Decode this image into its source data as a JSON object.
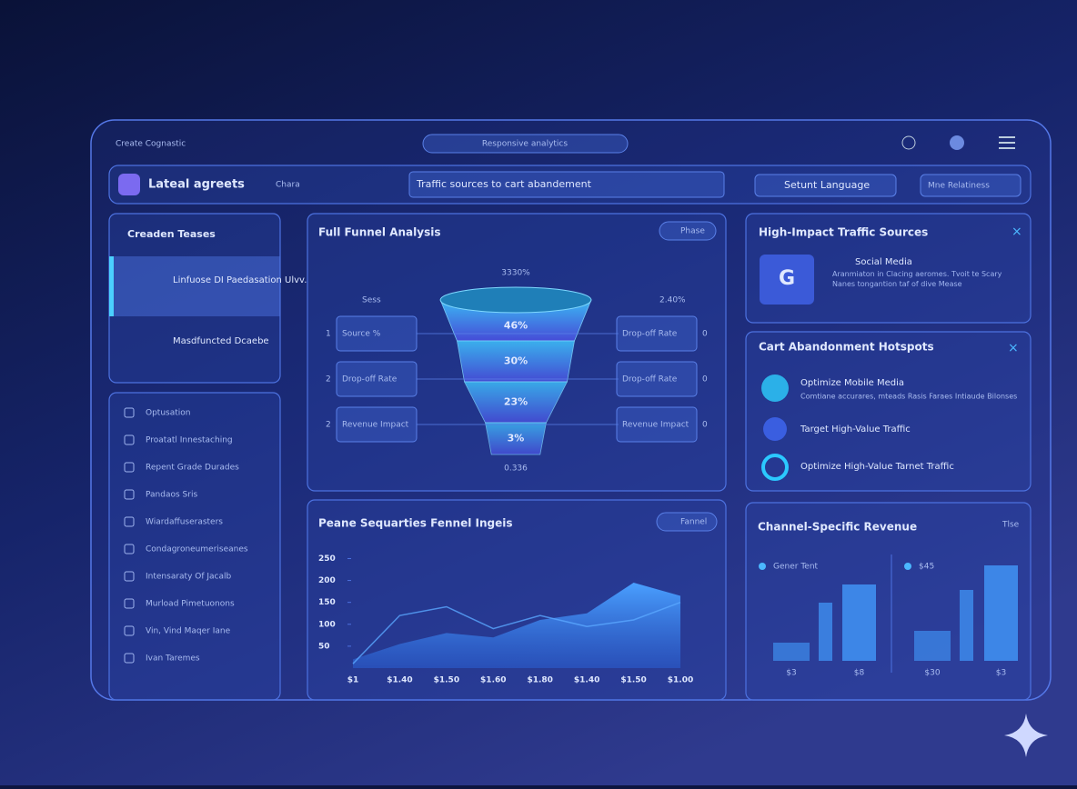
{
  "header": {
    "brand": "Create Cognastic",
    "tab": "Responsive analytics",
    "toolbar_title": "Lateal agreets",
    "toolbar_tag": "Chara",
    "search": "Traffic sources to cart abandement",
    "language": "Setunt Language",
    "select": "Mne Relatiness"
  },
  "sidebar": {
    "title": "Creaden Teases",
    "items": [
      "Linfuose DI Paedasation Ulvv.",
      "Masdfuncted Dcaebe"
    ],
    "nav": [
      "Optusation",
      "Proatatl Innestaching",
      "Repent Grade Durades",
      "Pandaos Sris",
      "Wiardaffuserasters",
      "Condagroneumeriseanes",
      "Intensaraty Of Jacalb",
      "Murload Pimetuonons",
      "Vin, Vind Maqer Iane",
      "Ivan Taremes"
    ]
  },
  "funnel": {
    "title": "Full Funnel Analysis",
    "button": "Phase",
    "total": "3330%",
    "left_top": "Sess",
    "right_top": "2.40%",
    "bottom": "0.336",
    "steps": [
      {
        "index": "1",
        "left": "Source %",
        "right": "Drop-off Rate",
        "end": "0"
      },
      {
        "index": "2",
        "left": "Drop-off Rate",
        "right": "Drop-off Rate",
        "end": "0"
      },
      {
        "index": "2",
        "left": "Revenue Impact",
        "right": "Revenue Impact",
        "end": "0"
      }
    ],
    "values": [
      46,
      30,
      23,
      3
    ],
    "value_labels": [
      "46%",
      "30%",
      "23%",
      "3%"
    ]
  },
  "traffic": {
    "title": "High-Impact Traffic Sources",
    "badge": "G",
    "name": "Social Media",
    "desc": "Aranmiaton in Clacing aeromes. Tvoit te Scary Nanes tongantion taf of dive Mease"
  },
  "hotspots": {
    "title": "Cart Abandonment Hotspots",
    "items": [
      "Optimize Mobile Media",
      "Target High-Value Traffic",
      "Optimize High-Value Tarnet Traffic"
    ],
    "desc": "Comtiane accurares, mteads Rasis Faraes Intiaude Bilonses"
  },
  "trend": {
    "type": "area",
    "title": "Peane Sequarties Fennel Ingeis",
    "button": "Fannel",
    "categories": [
      "$1",
      "$1.40",
      "$1.50",
      "$1.60",
      "$1.80",
      "$1.40",
      "$1.50",
      "$1.00"
    ],
    "series": [
      {
        "color": "#3a8ee8",
        "values": [
          20,
          55,
          80,
          70,
          110,
          125,
          195,
          165
        ]
      },
      {
        "color": "#5aa8ff",
        "values": [
          10,
          120,
          140,
          90,
          120,
          95,
          110,
          150
        ]
      }
    ],
    "ylim": [
      0,
      280
    ],
    "yticks": [
      50,
      100,
      150,
      200,
      250
    ]
  },
  "revenue": {
    "type": "bar",
    "title": "Channel-Specific Revenue",
    "button": "Tlse",
    "ylim": [
      0,
      120
    ],
    "groups": [
      {
        "name": "Gener Tent",
        "color": "#3f8ef0",
        "values": [
          20,
          64,
          84
        ],
        "categories": [
          "$3",
          null,
          "$8"
        ]
      },
      {
        "name": "$45",
        "color": "#3f8ef0",
        "values": [
          33,
          78,
          105
        ],
        "categories": [
          "$30",
          null,
          "$3"
        ]
      }
    ]
  }
}
